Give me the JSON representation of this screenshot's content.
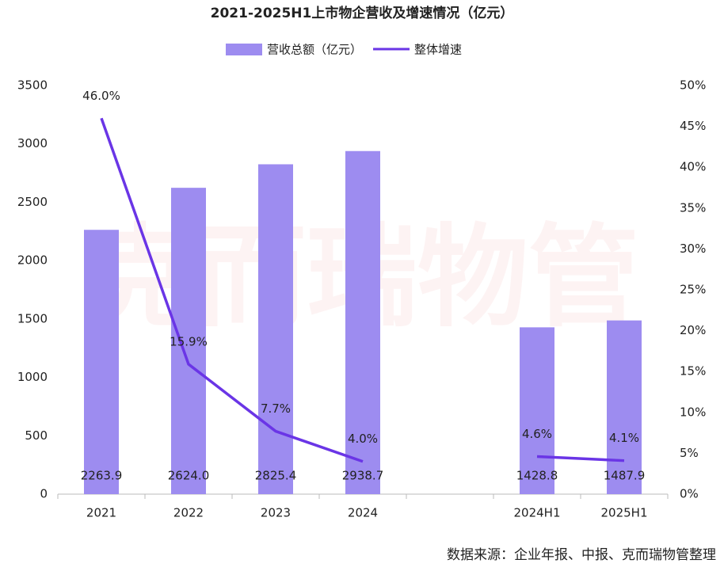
{
  "chart_data": {
    "type": "bar",
    "title": "2021-2025H1上市物企营收及增速情况（亿元）",
    "categories": [
      "2021",
      "2022",
      "2023",
      "2024",
      null,
      "2024H1",
      "2025H1"
    ],
    "series": [
      {
        "name": "营收总额（亿元）",
        "type": "bar",
        "color": "#9d8cf0",
        "values": [
          2263.9,
          2624.0,
          2825.4,
          2938.7,
          null,
          1428.8,
          1487.9
        ],
        "value_labels": [
          "2263.9",
          "2624.0",
          "2825.4",
          "2938.7",
          null,
          "1428.8",
          "1487.9"
        ]
      },
      {
        "name": "整体增速",
        "type": "line",
        "axis": "y2",
        "color": "#6a35e6",
        "values": [
          46.0,
          15.9,
          7.7,
          4.0,
          null,
          4.6,
          4.1
        ],
        "value_labels": [
          "46.0%",
          "15.9%",
          "7.7%",
          "4.0%",
          null,
          "4.6%",
          "4.1%"
        ]
      }
    ],
    "ylim": [
      0,
      3500
    ],
    "yticks": [
      0,
      500,
      1000,
      1500,
      2000,
      2500,
      3000,
      3500
    ],
    "y2lim": [
      0,
      50
    ],
    "y2ticks": [
      {
        "value": 0,
        "label": "0%"
      },
      {
        "value": 5,
        "label": "5%"
      },
      {
        "value": 10,
        "label": "10%"
      },
      {
        "value": 15,
        "label": "15%"
      },
      {
        "value": 20,
        "label": "20%"
      },
      {
        "value": 25,
        "label": "25%"
      },
      {
        "value": 30,
        "label": "30%"
      },
      {
        "value": 35,
        "label": "35%"
      },
      {
        "value": 40,
        "label": "40%"
      },
      {
        "value": 45,
        "label": "45%"
      },
      {
        "value": 50,
        "label": "50%"
      }
    ],
    "grid": false,
    "legend": "top",
    "watermark": "克而瑞物管",
    "source": "数据来源：企业年报、中报、克而瑞物管整理"
  }
}
